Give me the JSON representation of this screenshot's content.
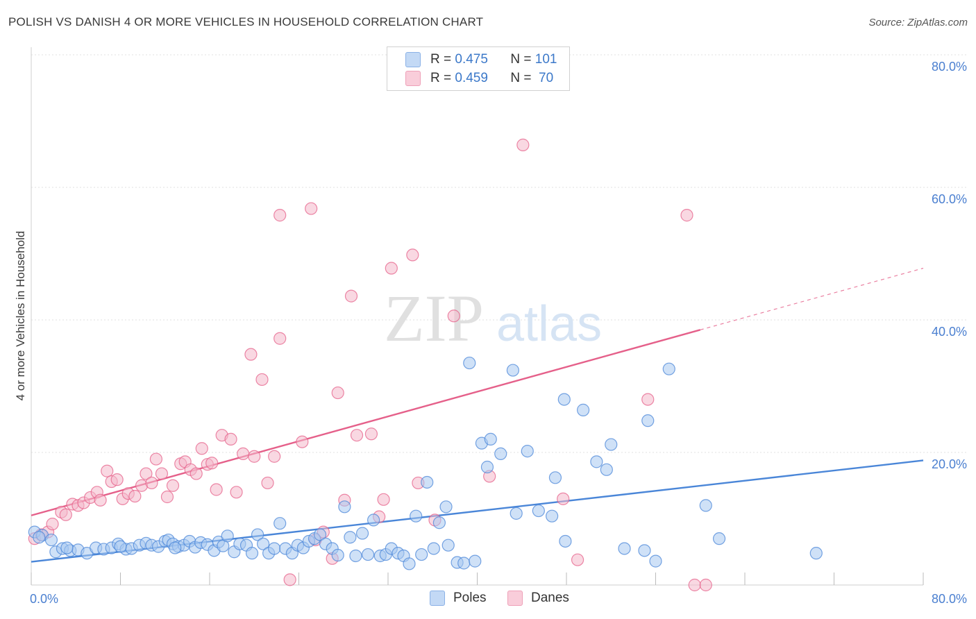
{
  "header": {
    "title": "POLISH VS DANISH 4 OR MORE VEHICLES IN HOUSEHOLD CORRELATION CHART",
    "source": "Source: ZipAtlas.com"
  },
  "watermark": {
    "zip": "ZIP",
    "atlas": "atlas"
  },
  "legend": {
    "rows": [
      {
        "r_label": "R = ",
        "r_value": "0.475",
        "n_label": "N = ",
        "n_value": "101",
        "color": "#a8c8f0"
      },
      {
        "r_label": "R = ",
        "r_value": "0.459",
        "n_label": "N = ",
        "n_value": " 70",
        "color": "#f4b8cb"
      }
    ]
  },
  "bottom_legend": [
    {
      "label": "Poles",
      "color": "#a8c8f0"
    },
    {
      "label": "Danes",
      "color": "#f4b8cb"
    }
  ],
  "chart_data": {
    "type": "scatter",
    "title": "POLISH VS DANISH 4 OR MORE VEHICLES IN HOUSEHOLD CORRELATION CHART",
    "xlabel": "",
    "ylabel": "4 or more Vehicles in Household",
    "xlim": [
      0,
      80
    ],
    "ylim": [
      0,
      80
    ],
    "x_tick_labels": [
      "0.0%",
      "80.0%"
    ],
    "y_tick_labels": [
      "20.0%",
      "40.0%",
      "60.0%",
      "80.0%"
    ],
    "y_ticks": [
      20,
      40,
      60,
      80
    ],
    "grid": true,
    "series": [
      {
        "name": "Poles",
        "color": "#4a86d8",
        "fill": "#a8c8f0",
        "trend": {
          "x": [
            0,
            80
          ],
          "y": [
            3.5,
            18.8
          ]
        },
        "points": [
          [
            0.3,
            8.0
          ],
          [
            1.0,
            7.5
          ],
          [
            1.8,
            6.8
          ],
          [
            2.2,
            5.0
          ],
          [
            2.8,
            5.5
          ],
          [
            3.5,
            5.2
          ],
          [
            4.2,
            5.3
          ],
          [
            5.0,
            4.8
          ],
          [
            5.8,
            5.6
          ],
          [
            6.5,
            5.4
          ],
          [
            7.2,
            5.6
          ],
          [
            7.8,
            6.2
          ],
          [
            8.5,
            5.4
          ],
          [
            9.0,
            5.5
          ],
          [
            9.7,
            6.0
          ],
          [
            10.3,
            6.3
          ],
          [
            10.8,
            6.0
          ],
          [
            11.4,
            5.8
          ],
          [
            12.0,
            6.6
          ],
          [
            12.3,
            6.8
          ],
          [
            12.7,
            6.2
          ],
          [
            13.2,
            5.8
          ],
          [
            13.7,
            6.0
          ],
          [
            14.2,
            6.6
          ],
          [
            14.7,
            5.7
          ],
          [
            15.2,
            6.4
          ],
          [
            15.8,
            6.1
          ],
          [
            16.4,
            5.2
          ],
          [
            16.8,
            6.5
          ],
          [
            17.2,
            5.9
          ],
          [
            17.6,
            7.4
          ],
          [
            18.2,
            5.0
          ],
          [
            18.7,
            6.2
          ],
          [
            19.3,
            6.0
          ],
          [
            19.8,
            4.8
          ],
          [
            20.3,
            7.6
          ],
          [
            20.8,
            6.2
          ],
          [
            21.3,
            4.8
          ],
          [
            21.8,
            5.5
          ],
          [
            22.3,
            9.3
          ],
          [
            22.8,
            5.5
          ],
          [
            23.4,
            4.8
          ],
          [
            23.9,
            6.0
          ],
          [
            24.4,
            5.6
          ],
          [
            24.9,
            6.6
          ],
          [
            25.4,
            7.0
          ],
          [
            25.9,
            7.6
          ],
          [
            26.4,
            6.2
          ],
          [
            27.0,
            5.5
          ],
          [
            27.5,
            4.5
          ],
          [
            28.1,
            11.8
          ],
          [
            28.6,
            7.2
          ],
          [
            29.1,
            4.4
          ],
          [
            29.7,
            7.8
          ],
          [
            30.2,
            4.6
          ],
          [
            30.7,
            9.8
          ],
          [
            31.3,
            4.4
          ],
          [
            31.8,
            4.6
          ],
          [
            32.3,
            5.5
          ],
          [
            32.9,
            4.8
          ],
          [
            33.4,
            4.4
          ],
          [
            33.9,
            3.2
          ],
          [
            34.5,
            10.4
          ],
          [
            35.0,
            4.6
          ],
          [
            35.5,
            15.5
          ],
          [
            36.1,
            5.5
          ],
          [
            36.6,
            9.4
          ],
          [
            37.2,
            11.8
          ],
          [
            37.4,
            6.0
          ],
          [
            38.2,
            3.4
          ],
          [
            38.8,
            3.3
          ],
          [
            39.3,
            33.5
          ],
          [
            39.8,
            3.6
          ],
          [
            40.4,
            21.4
          ],
          [
            40.9,
            17.8
          ],
          [
            41.2,
            22.0
          ],
          [
            42.1,
            19.8
          ],
          [
            43.2,
            32.4
          ],
          [
            43.5,
            10.8
          ],
          [
            44.5,
            20.2
          ],
          [
            45.5,
            11.2
          ],
          [
            46.7,
            10.4
          ],
          [
            47.0,
            16.2
          ],
          [
            47.8,
            28.0
          ],
          [
            47.9,
            6.6
          ],
          [
            49.5,
            26.4
          ],
          [
            50.7,
            18.6
          ],
          [
            51.6,
            17.4
          ],
          [
            52.0,
            21.2
          ],
          [
            53.2,
            5.5
          ],
          [
            55.3,
            24.8
          ],
          [
            55.0,
            5.2
          ],
          [
            56.0,
            3.6
          ],
          [
            57.2,
            32.6
          ],
          [
            60.5,
            12.0
          ],
          [
            61.7,
            7.0
          ],
          [
            70.4,
            4.8
          ],
          [
            0.7,
            7.2
          ],
          [
            3.2,
            5.6
          ],
          [
            8.0,
            5.8
          ],
          [
            12.9,
            5.6
          ]
        ]
      },
      {
        "name": "Danes",
        "color": "#e5608a",
        "fill": "#f4b8cb",
        "trend": {
          "x": [
            0,
            60
          ],
          "y": [
            10.5,
            38.5
          ],
          "dashed_to": {
            "x": 80,
            "y": 47.8
          }
        },
        "points": [
          [
            0.3,
            7.0
          ],
          [
            0.9,
            7.6
          ],
          [
            1.5,
            8.0
          ],
          [
            1.9,
            9.2
          ],
          [
            2.7,
            11.0
          ],
          [
            3.1,
            10.6
          ],
          [
            3.7,
            12.2
          ],
          [
            4.2,
            12.0
          ],
          [
            4.7,
            12.4
          ],
          [
            5.3,
            13.2
          ],
          [
            5.9,
            14.0
          ],
          [
            6.2,
            12.8
          ],
          [
            6.8,
            17.2
          ],
          [
            7.2,
            15.6
          ],
          [
            7.7,
            15.9
          ],
          [
            8.2,
            13.0
          ],
          [
            8.7,
            13.8
          ],
          [
            9.3,
            13.4
          ],
          [
            9.9,
            15.0
          ],
          [
            10.3,
            16.8
          ],
          [
            10.8,
            15.4
          ],
          [
            11.2,
            19.0
          ],
          [
            11.7,
            16.8
          ],
          [
            12.2,
            13.3
          ],
          [
            12.7,
            15.0
          ],
          [
            13.4,
            18.3
          ],
          [
            13.8,
            18.6
          ],
          [
            14.3,
            17.4
          ],
          [
            14.8,
            16.8
          ],
          [
            15.3,
            20.6
          ],
          [
            15.8,
            18.2
          ],
          [
            16.2,
            18.4
          ],
          [
            16.6,
            14.4
          ],
          [
            17.1,
            22.6
          ],
          [
            17.9,
            22.0
          ],
          [
            18.4,
            14.0
          ],
          [
            19.0,
            19.8
          ],
          [
            19.7,
            34.8
          ],
          [
            20.0,
            19.4
          ],
          [
            20.7,
            31.0
          ],
          [
            21.2,
            15.4
          ],
          [
            21.8,
            19.4
          ],
          [
            22.3,
            55.8
          ],
          [
            22.3,
            37.2
          ],
          [
            23.2,
            0.8
          ],
          [
            24.3,
            21.6
          ],
          [
            25.1,
            56.8
          ],
          [
            25.5,
            6.8
          ],
          [
            26.2,
            8.0
          ],
          [
            27.5,
            29.0
          ],
          [
            28.1,
            12.8
          ],
          [
            28.7,
            43.6
          ],
          [
            29.2,
            22.6
          ],
          [
            30.5,
            22.8
          ],
          [
            31.2,
            10.3
          ],
          [
            31.6,
            12.9
          ],
          [
            32.3,
            47.8
          ],
          [
            34.2,
            49.8
          ],
          [
            34.7,
            15.4
          ],
          [
            36.2,
            9.8
          ],
          [
            37.9,
            40.6
          ],
          [
            41.1,
            16.4
          ],
          [
            44.1,
            66.4
          ],
          [
            47.7,
            13.0
          ],
          [
            49.0,
            3.8
          ],
          [
            55.3,
            28.0
          ],
          [
            58.8,
            55.8
          ],
          [
            59.5,
            0.0
          ],
          [
            60.5,
            0.0
          ],
          [
            27.0,
            4.0
          ]
        ]
      }
    ]
  }
}
